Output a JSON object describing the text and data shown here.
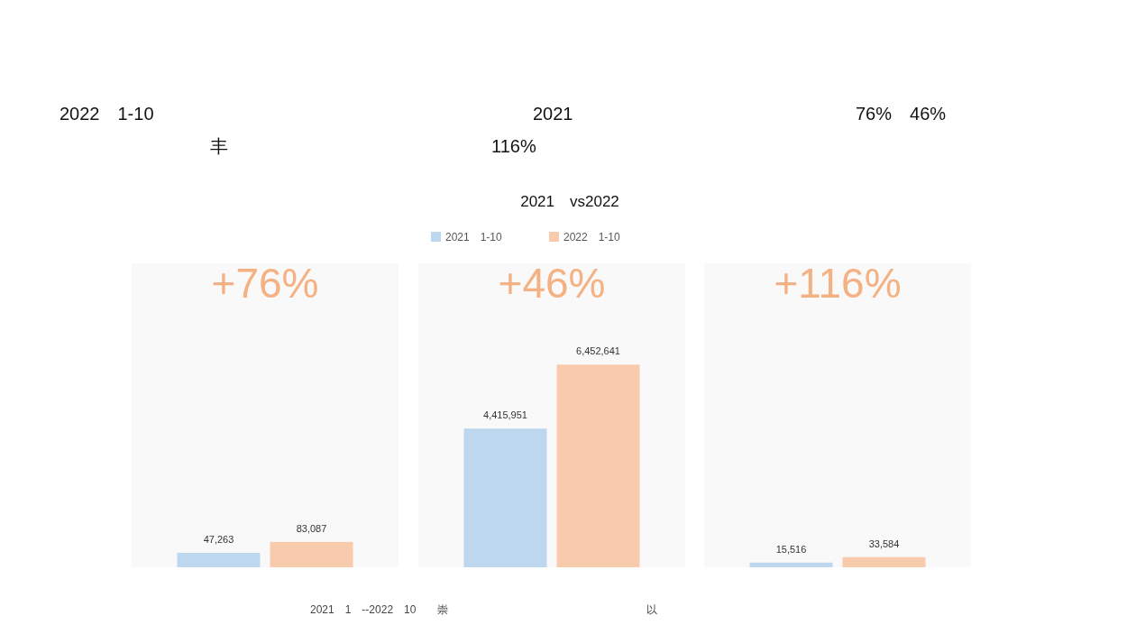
{
  "chart_data": [
    {
      "type": "bar",
      "categories": [
        null
      ],
      "series": [
        {
          "color": "#bdd7ee",
          "values": [
            47263
          ],
          "value_labels": [
            "47,263"
          ]
        },
        {
          "color": "#f8cbad",
          "values": [
            83087
          ],
          "value_labels": [
            "83,087"
          ]
        }
      ],
      "annotations": [
        "+76%",
        "2022　1-10",
        "2021",
        "76%　46%",
        "丰",
        "116%",
        "2021　1　--2022　10　　崇",
        "以"
      ]
    },
    {
      "type": "bar",
      "title": "2021　vs2022",
      "categories": [
        null
      ],
      "legend": "top",
      "series": [
        {
          "name": "2021　1-10",
          "color": "#bdd7ee",
          "values": [
            4415951
          ],
          "value_labels": [
            "4,415,951"
          ]
        },
        {
          "name": "2022　1-10",
          "color": "#f8cbad",
          "values": [
            6452641
          ],
          "value_labels": [
            "6,452,641"
          ]
        }
      ],
      "annotations": [
        "+46%"
      ]
    },
    {
      "type": "bar",
      "categories": [
        null
      ],
      "series": [
        {
          "color": "#bdd7ee",
          "values": [
            15516
          ],
          "value_labels": [
            "15,516"
          ]
        },
        {
          "color": "#f8cbad",
          "values": [
            33584
          ],
          "value_labels": [
            "33,584"
          ]
        }
      ],
      "annotations": [
        "+116%"
      ]
    }
  ]
}
